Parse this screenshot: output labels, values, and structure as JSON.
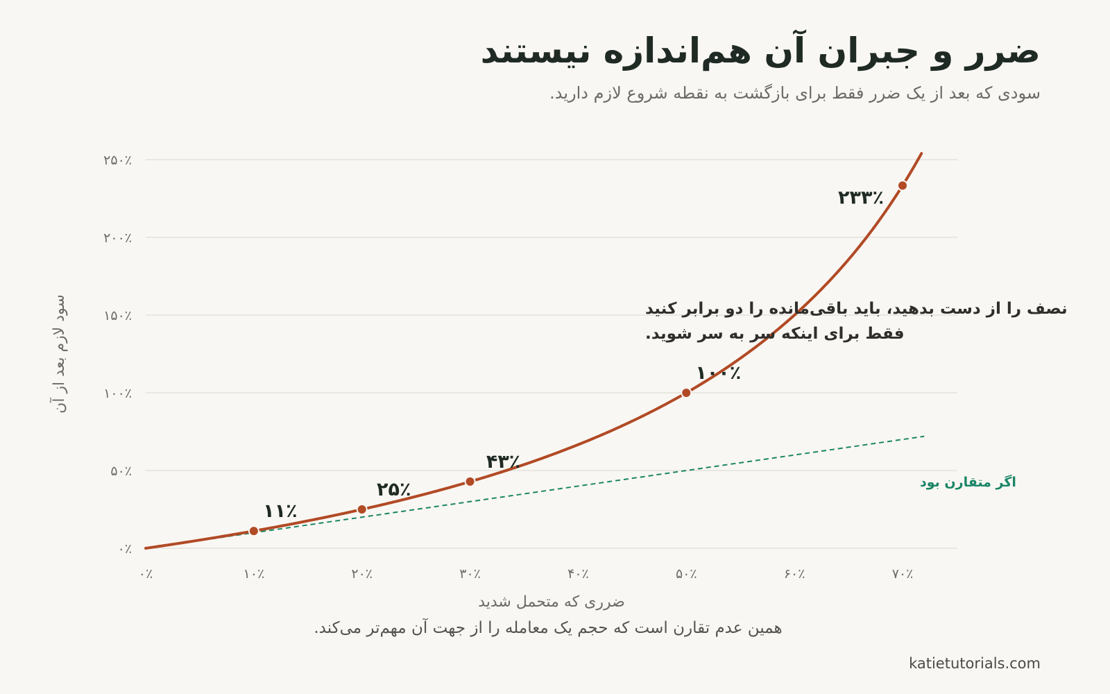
{
  "header": {
    "title": "ضرر و جبران آن هم‌اندازه نیستند",
    "subtitle": "سودی که بعد از یک ضرر فقط برای بازگشت به نقطه شروع لازم دارید."
  },
  "footnote": "همین عدم تقارن است که حجم یک معامله را از جهت آن مهم‌تر می‌کند.",
  "credit": "katietutorials.com",
  "colors": {
    "curve": "#b14a25",
    "symmetric": "#1a8566",
    "grid": "#e4e2dd",
    "text": "#1f2a24",
    "muted": "#6c6a66"
  },
  "chart_data": {
    "type": "line",
    "xlabel": "ضرری که متحمل شدید",
    "ylabel": "سود لازم بعد از آن",
    "xlim": [
      0,
      72
    ],
    "ylim": [
      0,
      250
    ],
    "x_ticks": [
      0,
      10,
      20,
      30,
      40,
      50,
      60,
      70
    ],
    "x_tick_labels": [
      "۰٪",
      "۱۰٪",
      "۲۰٪",
      "۳۰٪",
      "۴۰٪",
      "۵۰٪",
      "۶۰٪",
      "۷۰٪"
    ],
    "y_ticks": [
      0,
      50,
      100,
      150,
      200,
      250
    ],
    "y_tick_labels": [
      "۰٪",
      "۵۰٪",
      "۱۰۰٪",
      "۱۵۰٪",
      "۲۰۰٪",
      "۲۵۰٪"
    ],
    "grid": "horizontal",
    "series": [
      {
        "id": "required-gain",
        "formula": "100*x/(100-x)",
        "x_range": [
          0,
          71.8
        ],
        "highlight_points": [
          {
            "x": 10,
            "y": 11.1,
            "label": "۱۱٪"
          },
          {
            "x": 20,
            "y": 25,
            "label": "۲۵٪"
          },
          {
            "x": 30,
            "y": 42.9,
            "label": "۴۳٪"
          },
          {
            "x": 50,
            "y": 100,
            "label": "۱۰۰٪"
          },
          {
            "x": 70,
            "y": 233.3,
            "label": "۲۳۳٪"
          }
        ]
      },
      {
        "id": "symmetric",
        "name": "اگر متقارن بود",
        "formula": "x",
        "x_range": [
          0,
          72
        ],
        "style": "dashed"
      }
    ],
    "annotation": {
      "lines": [
        "نصف را از دست بدهید، باید باقی‌مانده را دو برابر کنید",
        "فقط برای اینکه سر به سر شوید."
      ]
    }
  }
}
